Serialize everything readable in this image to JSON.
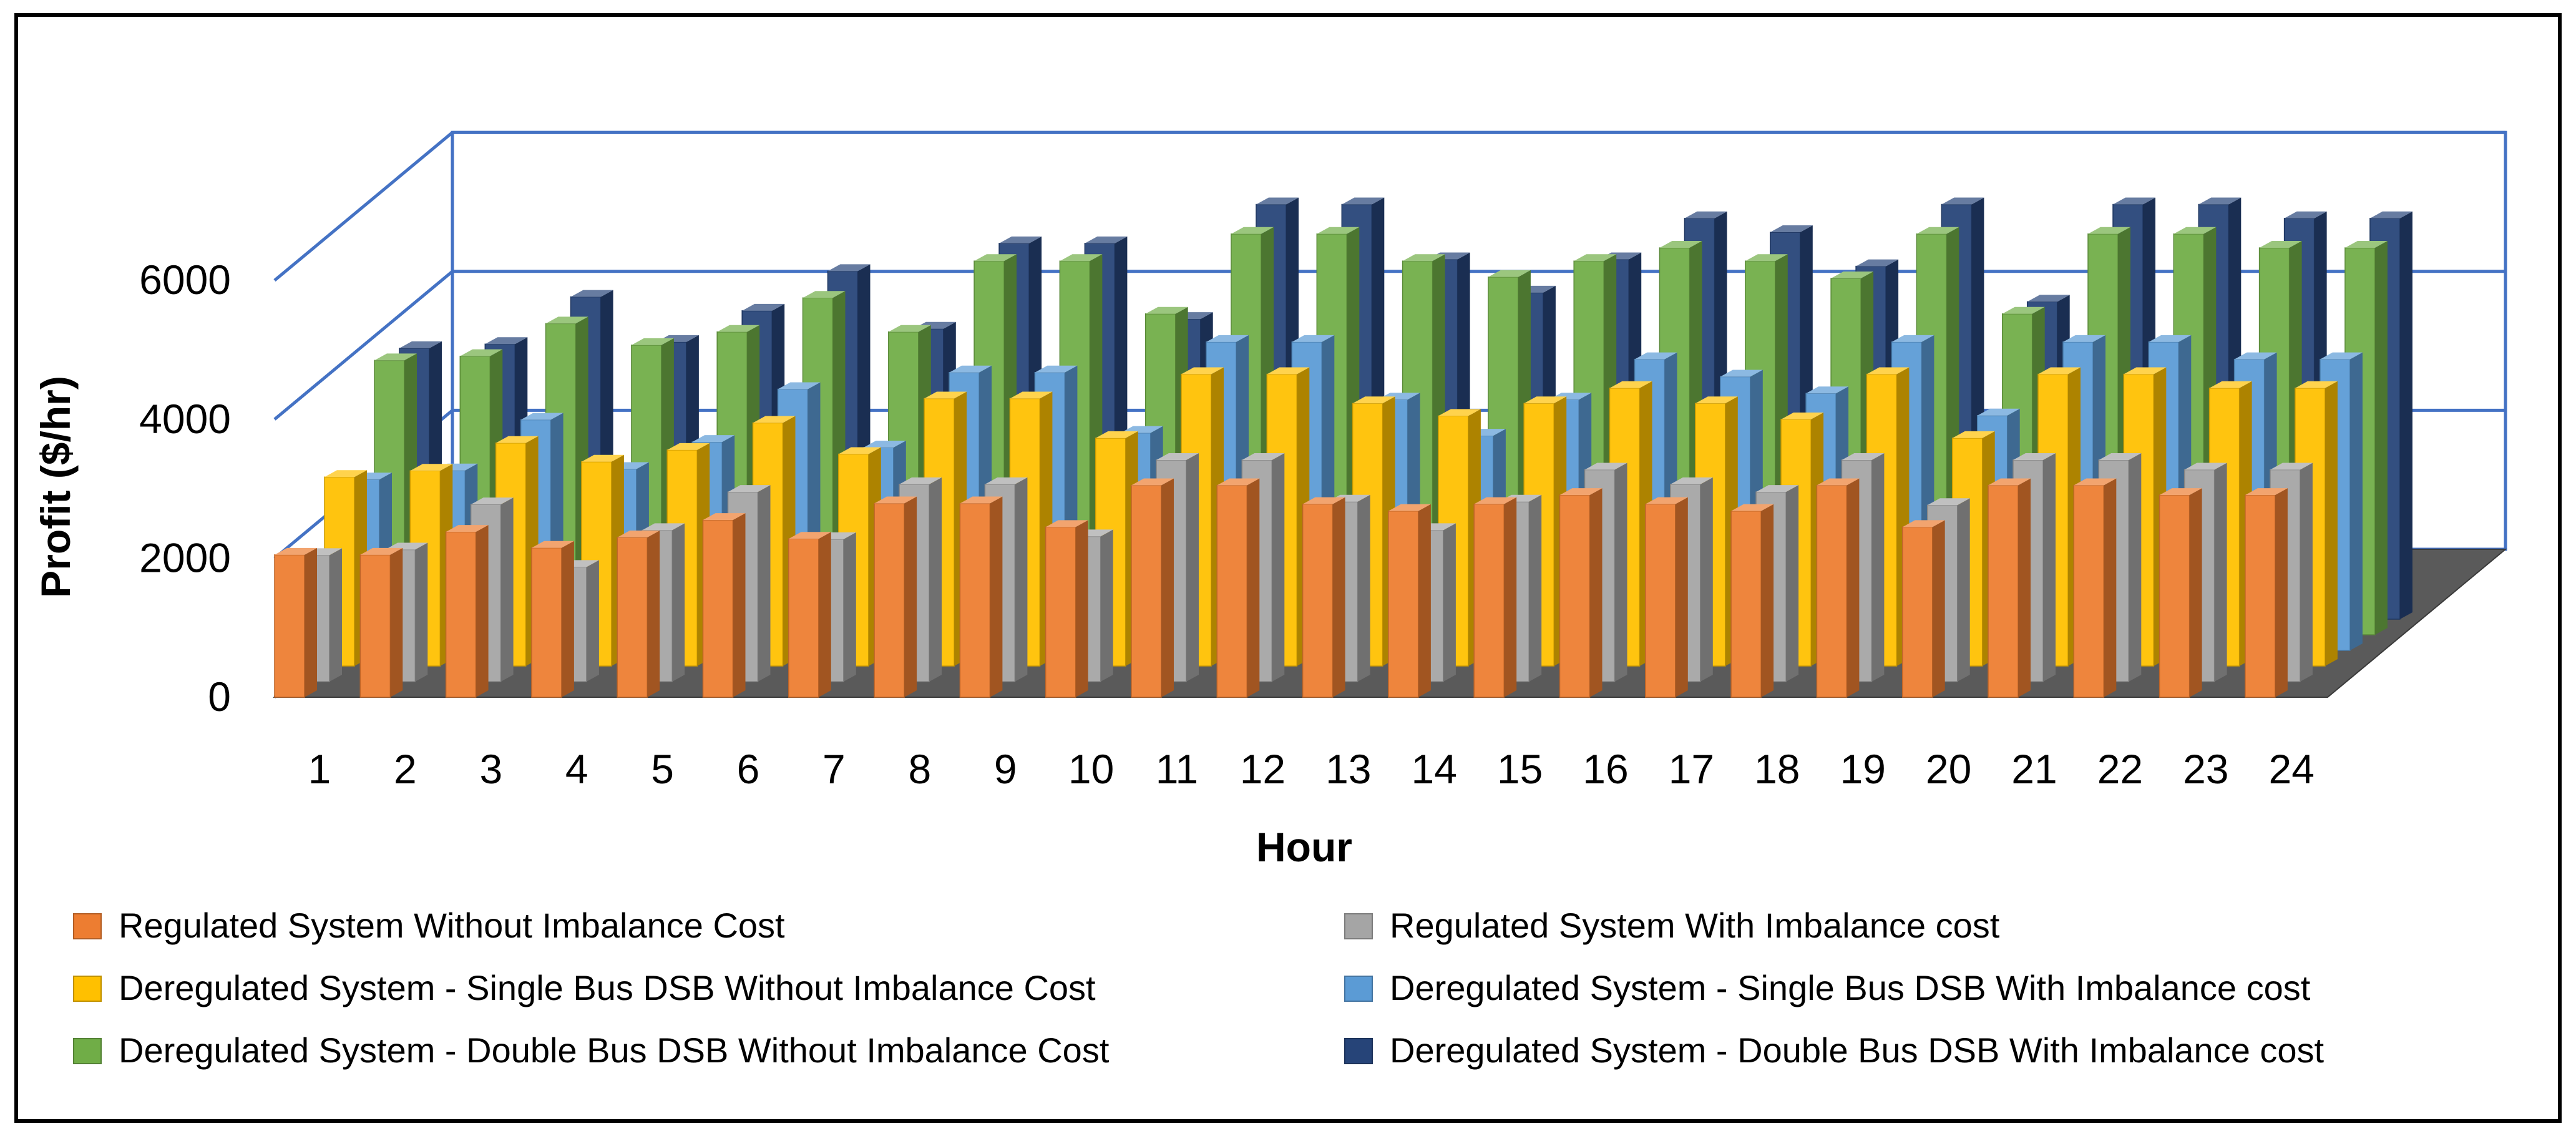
{
  "chart_data": {
    "type": "bar",
    "style": "3d-clustered-column",
    "title": "",
    "xlabel": "Hour",
    "ylabel": "Profit ($/hr)",
    "ylim": [
      0,
      6000
    ],
    "yticks": [
      "0",
      "2000",
      "4000",
      "6000"
    ],
    "grid": true,
    "legend_position": "bottom",
    "categories": [
      "1",
      "2",
      "3",
      "4",
      "5",
      "6",
      "7",
      "8",
      "9",
      "10",
      "11",
      "12",
      "13",
      "14",
      "15",
      "16",
      "17",
      "18",
      "19",
      "20",
      "21",
      "22",
      "23",
      "24"
    ],
    "series": [
      {
        "name": "Regulated System Without Imbalance Cost",
        "color": "#ED7D31",
        "values": [
          2050,
          2050,
          2380,
          2150,
          2300,
          2550,
          2280,
          2790,
          2790,
          2450,
          3050,
          3050,
          2780,
          2680,
          2780,
          2910,
          2780,
          2680,
          3050,
          2450,
          3050,
          3050,
          2910,
          2910
        ]
      },
      {
        "name": "Regulated System With Imbalance cost",
        "color": "#A5A5A5",
        "values": [
          1820,
          1900,
          2550,
          1650,
          2180,
          2730,
          2050,
          2840,
          2840,
          2090,
          3190,
          3190,
          2590,
          2180,
          2590,
          3050,
          2840,
          2730,
          3190,
          2540,
          3190,
          3190,
          3050,
          3050
        ]
      },
      {
        "name": "Deregulated System - Single Bus DSB Without Imbalance Cost",
        "color": "#FFC000",
        "values": [
          2720,
          2810,
          3210,
          2940,
          3110,
          3500,
          3050,
          3850,
          3850,
          3280,
          4200,
          4200,
          3780,
          3600,
          3780,
          4000,
          3780,
          3550,
          4200,
          3280,
          4200,
          4200,
          4000,
          4000
        ]
      },
      {
        "name": "Deregulated System - Single Bus DSB With Imbalance cost",
        "color": "#5B9BD5",
        "values": [
          2460,
          2590,
          3320,
          2610,
          3000,
          3760,
          2920,
          4000,
          4000,
          3130,
          4440,
          4440,
          3610,
          3090,
          3610,
          4190,
          3940,
          3700,
          4440,
          3380,
          4440,
          4440,
          4190,
          4190
        ]
      },
      {
        "name": "Deregulated System - Double Bus DSB  Without Imbalance Cost",
        "color": "#70AD47",
        "values": [
          3950,
          4010,
          4480,
          4170,
          4360,
          4850,
          4360,
          5380,
          5380,
          4620,
          5770,
          5770,
          5380,
          5150,
          5380,
          5570,
          5380,
          5130,
          5770,
          4620,
          5770,
          5770,
          5570,
          5570
        ]
      },
      {
        "name": "Deregulated System - Double Bus DSB With Imbalance cost",
        "color": "#264478",
        "values": [
          3900,
          3960,
          4640,
          3990,
          4440,
          5010,
          4180,
          5410,
          5410,
          4320,
          5970,
          5970,
          5180,
          4700,
          5180,
          5770,
          5570,
          5080,
          5970,
          4570,
          5970,
          5970,
          5770,
          5770
        ]
      }
    ]
  }
}
